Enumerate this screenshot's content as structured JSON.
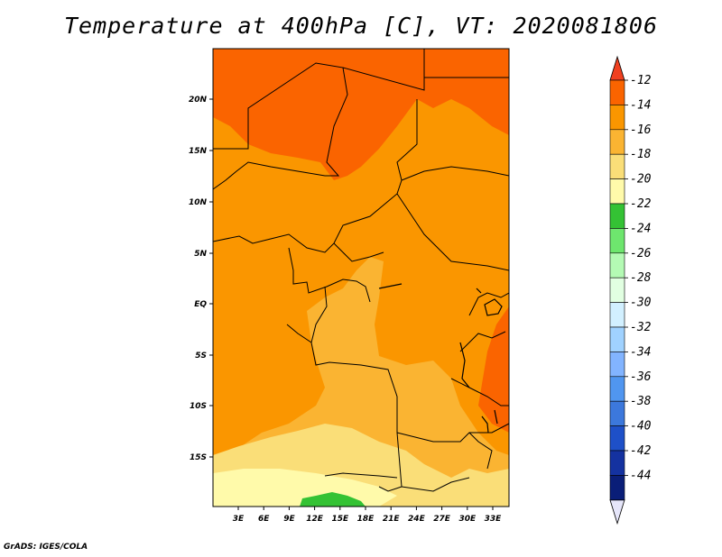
{
  "title": "Temperature at 400hPa [C], VT: 2020081806",
  "credit": "GrADS: IGES/COLA",
  "map": {
    "lat_labels": [
      "20N",
      "15N",
      "10N",
      "5N",
      "EQ",
      "5S",
      "10S",
      "15S"
    ],
    "lon_labels": [
      "3E",
      "6E",
      "9E",
      "12E",
      "15E",
      "18E",
      "21E",
      "24E",
      "27E",
      "30E",
      "33E"
    ]
  },
  "colorbar": {
    "labels": [
      "-12",
      "-14",
      "-16",
      "-18",
      "-20",
      "-22",
      "-24",
      "-26",
      "-28",
      "-30",
      "-32",
      "-34",
      "-36",
      "-38",
      "-40",
      "-42",
      "-44"
    ],
    "top_arrow_color": "#f04020",
    "bottom_arrow_color": "#e6e6fa",
    "bin_colors": [
      "#fa6400",
      "#fa9600",
      "#fab432",
      "#fade78",
      "#fffaaa",
      "#34c234",
      "#6ee66e",
      "#b4fab4",
      "#e1ffe1",
      "#d2f0ff",
      "#a0d2ff",
      "#82b4ff",
      "#5096f0",
      "#3c78dc",
      "#1e50c8",
      "#1432a0",
      "#0a1e78"
    ]
  },
  "field_colors": {
    "c_m12_m14": "#fa6400",
    "c_m14_m16": "#fa9600",
    "c_m16_m18": "#fab432",
    "c_m18_m20": "#fade78",
    "c_m20_m22": "#fffaaa",
    "c_m22_m24": "#34c234"
  }
}
